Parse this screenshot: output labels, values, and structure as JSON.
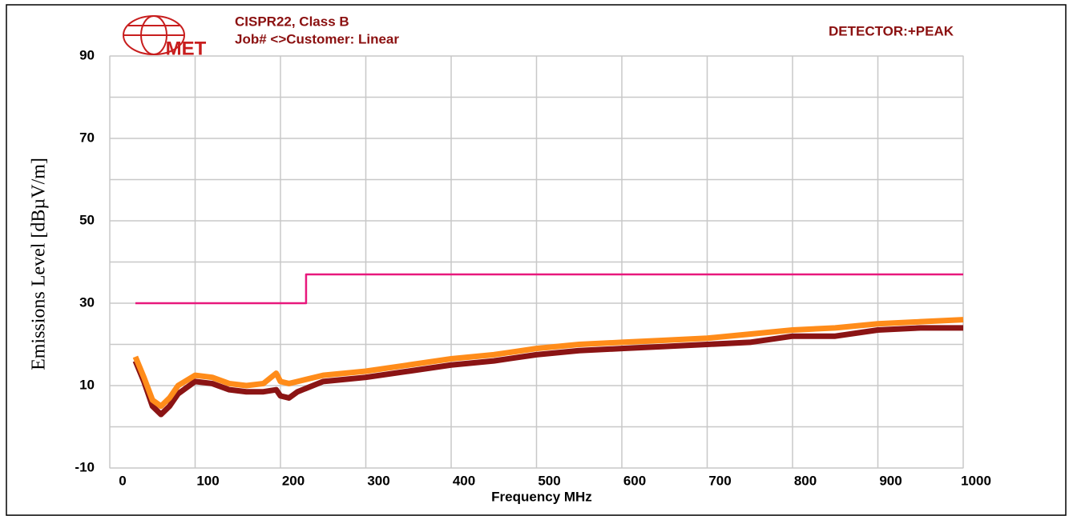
{
  "chart_data": {
    "type": "line",
    "logo": "MET",
    "title": "CISPR22, Class B",
    "subtitle": "Job# <>Customer: Linear",
    "annotation": "DETECTOR:+PEAK",
    "xlabel": "Frequency MHz",
    "ylabel": "Emissions Level [dBµV/m]",
    "xlim": [
      0,
      1000
    ],
    "ylim": [
      -10,
      90
    ],
    "xticks": [
      0,
      100,
      200,
      300,
      400,
      500,
      600,
      700,
      800,
      900,
      1000
    ],
    "yticks": [
      -10,
      10,
      30,
      50,
      70,
      90
    ],
    "grid": true,
    "series": [
      {
        "color": "#8b1414",
        "x": [
          30,
          40,
          50,
          60,
          70,
          80,
          100,
          120,
          140,
          160,
          180,
          195,
          200,
          210,
          220,
          250,
          300,
          350,
          400,
          450,
          500,
          550,
          600,
          650,
          700,
          750,
          800,
          850,
          900,
          950,
          1000
        ],
        "values": [
          16,
          11,
          5,
          3,
          5,
          8,
          11,
          10.5,
          9,
          8.5,
          8.5,
          9,
          7.5,
          7,
          8.5,
          11,
          12,
          13.5,
          15,
          16,
          17.5,
          18.5,
          19,
          19.5,
          20,
          20.5,
          22,
          22,
          23.5,
          24,
          24
        ]
      },
      {
        "color": "#ff8c1a",
        "x": [
          30,
          40,
          50,
          60,
          70,
          80,
          100,
          120,
          140,
          160,
          180,
          195,
          200,
          210,
          220,
          250,
          300,
          350,
          400,
          450,
          500,
          550,
          600,
          650,
          700,
          750,
          800,
          850,
          900,
          950,
          1000
        ],
        "values": [
          17,
          12,
          6.5,
          5,
          7,
          10,
          12.5,
          12,
          10.5,
          10,
          10.5,
          13,
          11,
          10.5,
          11,
          12.5,
          13.5,
          15,
          16.5,
          17.5,
          19,
          20,
          20.5,
          21,
          21.5,
          22.5,
          23.5,
          24,
          25,
          25.5,
          26
        ]
      },
      {
        "color": "#e8187c",
        "x": [
          30,
          230,
          230,
          1000
        ],
        "values": [
          30,
          30,
          37,
          37
        ]
      }
    ]
  }
}
